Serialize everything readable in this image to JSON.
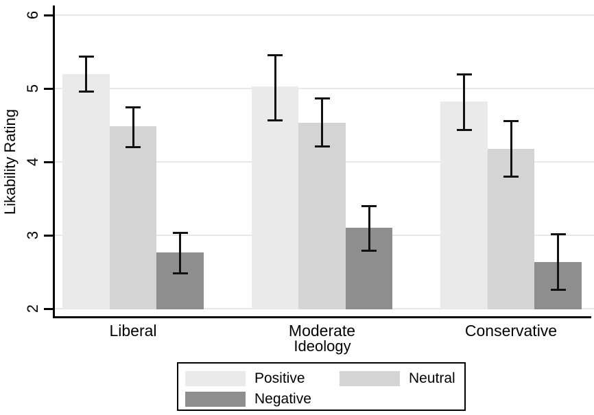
{
  "chart_data": {
    "type": "bar",
    "title": "",
    "xlabel": "Ideology",
    "ylabel": "Likability Rating",
    "ylim": [
      2,
      6
    ],
    "yticks": [
      2,
      3,
      4,
      5,
      6
    ],
    "grid": true,
    "legend_position": "bottom",
    "categories": [
      "Liberal",
      "Moderate",
      "Conservative"
    ],
    "series": [
      {
        "name": "Positive",
        "color": "#eaeaea",
        "values": [
          5.2,
          5.03,
          4.82
        ],
        "ci_low": [
          4.96,
          4.57,
          4.43
        ],
        "ci_high": [
          5.43,
          5.45,
          5.19
        ]
      },
      {
        "name": "Neutral",
        "color": "#d4d4d4",
        "values": [
          4.49,
          4.53,
          4.18
        ],
        "ci_low": [
          4.2,
          4.21,
          3.8
        ],
        "ci_high": [
          4.74,
          4.86,
          4.56
        ]
      },
      {
        "name": "Negative",
        "color": "#8e8e8e",
        "values": [
          2.77,
          3.1,
          2.64
        ],
        "ci_low": [
          2.48,
          2.79,
          2.26
        ],
        "ci_high": [
          3.03,
          3.4,
          3.01
        ]
      }
    ],
    "legend_rows": [
      [
        "Positive",
        "Neutral"
      ],
      [
        "Negative"
      ]
    ],
    "colors": {
      "axis": "#000000",
      "gridline": "#e8e8e8",
      "error_bar": "#111111",
      "background": "#ffffff"
    }
  }
}
